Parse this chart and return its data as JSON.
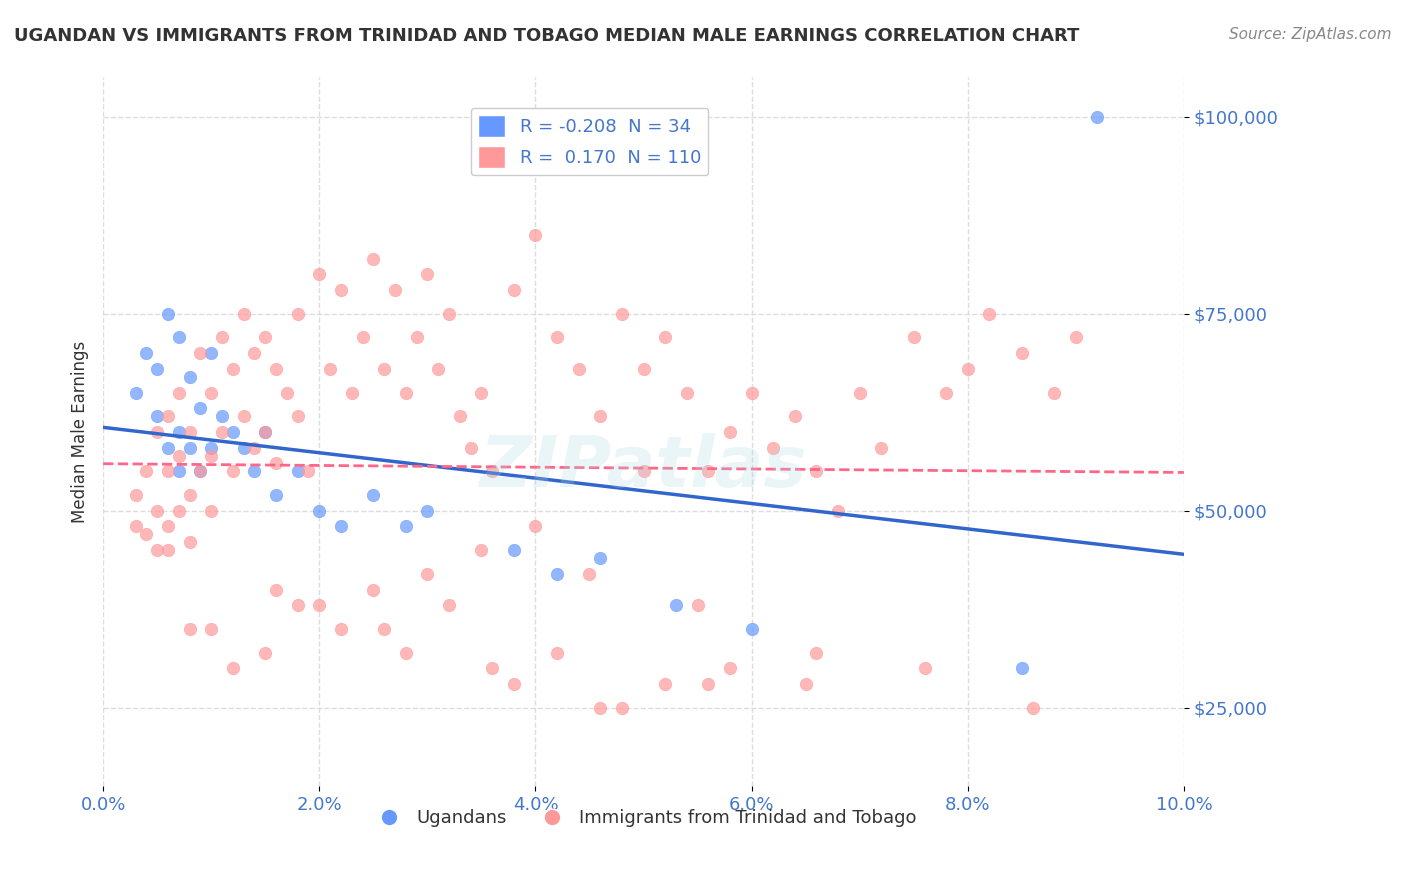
{
  "title": "UGANDAN VS IMMIGRANTS FROM TRINIDAD AND TOBAGO MEDIAN MALE EARNINGS CORRELATION CHART",
  "source": "Source: ZipAtlas.com",
  "xlabel_bottom": "",
  "ylabel": "Median Male Earnings",
  "watermark": "ZIPatlas",
  "legend_blue_r": "-0.208",
  "legend_blue_n": "34",
  "legend_pink_r": "0.170",
  "legend_pink_n": "110",
  "legend_label_blue": "Ugandans",
  "legend_label_pink": "Immigrants from Trinidad and Tobago",
  "xlim": [
    0.0,
    0.1
  ],
  "ylim": [
    15000,
    105000
  ],
  "yticks": [
    25000,
    50000,
    75000,
    100000
  ],
  "xticks": [
    0.0,
    0.02,
    0.04,
    0.06,
    0.08,
    0.1
  ],
  "blue_color": "#6699ff",
  "pink_color": "#ff9999",
  "blue_line_color": "#3366cc",
  "pink_line_color": "#ff6688",
  "bg_color": "#ffffff",
  "grid_color": "#dddddd",
  "title_color": "#333333",
  "axis_label_color": "#4477cc",
  "blue_scatter_x": [
    0.003,
    0.004,
    0.005,
    0.005,
    0.006,
    0.006,
    0.007,
    0.007,
    0.007,
    0.008,
    0.008,
    0.009,
    0.009,
    0.01,
    0.01,
    0.011,
    0.012,
    0.013,
    0.014,
    0.015,
    0.016,
    0.018,
    0.02,
    0.022,
    0.025,
    0.028,
    0.03,
    0.038,
    0.042,
    0.046,
    0.053,
    0.06,
    0.085,
    0.092
  ],
  "blue_scatter_y": [
    65000,
    70000,
    68000,
    62000,
    75000,
    58000,
    72000,
    60000,
    55000,
    67000,
    58000,
    63000,
    55000,
    70000,
    58000,
    62000,
    60000,
    58000,
    55000,
    60000,
    52000,
    55000,
    50000,
    48000,
    52000,
    48000,
    50000,
    45000,
    42000,
    44000,
    38000,
    35000,
    30000,
    100000
  ],
  "pink_scatter_x": [
    0.003,
    0.003,
    0.004,
    0.004,
    0.005,
    0.005,
    0.005,
    0.006,
    0.006,
    0.006,
    0.007,
    0.007,
    0.007,
    0.008,
    0.008,
    0.008,
    0.009,
    0.009,
    0.01,
    0.01,
    0.01,
    0.011,
    0.011,
    0.012,
    0.012,
    0.013,
    0.013,
    0.014,
    0.014,
    0.015,
    0.015,
    0.016,
    0.016,
    0.017,
    0.018,
    0.018,
    0.019,
    0.02,
    0.021,
    0.022,
    0.023,
    0.024,
    0.025,
    0.026,
    0.027,
    0.028,
    0.029,
    0.03,
    0.031,
    0.032,
    0.033,
    0.034,
    0.035,
    0.036,
    0.038,
    0.04,
    0.042,
    0.044,
    0.046,
    0.048,
    0.05,
    0.052,
    0.054,
    0.056,
    0.058,
    0.06,
    0.062,
    0.064,
    0.066,
    0.068,
    0.07,
    0.072,
    0.075,
    0.078,
    0.08,
    0.082,
    0.085,
    0.088,
    0.09,
    0.05,
    0.04,
    0.03,
    0.02,
    0.01,
    0.025,
    0.035,
    0.045,
    0.055,
    0.015,
    0.065,
    0.012,
    0.022,
    0.032,
    0.042,
    0.052,
    0.006,
    0.016,
    0.026,
    0.036,
    0.046,
    0.056,
    0.066,
    0.076,
    0.086,
    0.008,
    0.018,
    0.028,
    0.038,
    0.048,
    0.058
  ],
  "pink_scatter_y": [
    52000,
    48000,
    55000,
    47000,
    60000,
    50000,
    45000,
    62000,
    55000,
    48000,
    65000,
    57000,
    50000,
    60000,
    52000,
    46000,
    70000,
    55000,
    65000,
    57000,
    50000,
    72000,
    60000,
    68000,
    55000,
    75000,
    62000,
    70000,
    58000,
    72000,
    60000,
    68000,
    56000,
    65000,
    75000,
    62000,
    55000,
    80000,
    68000,
    78000,
    65000,
    72000,
    82000,
    68000,
    78000,
    65000,
    72000,
    80000,
    68000,
    75000,
    62000,
    58000,
    65000,
    55000,
    78000,
    85000,
    72000,
    68000,
    62000,
    75000,
    68000,
    72000,
    65000,
    55000,
    60000,
    65000,
    58000,
    62000,
    55000,
    50000,
    65000,
    58000,
    72000,
    65000,
    68000,
    75000,
    70000,
    65000,
    72000,
    55000,
    48000,
    42000,
    38000,
    35000,
    40000,
    45000,
    42000,
    38000,
    32000,
    28000,
    30000,
    35000,
    38000,
    32000,
    28000,
    45000,
    40000,
    35000,
    30000,
    25000,
    28000,
    32000,
    30000,
    25000,
    35000,
    38000,
    32000,
    28000,
    25000,
    30000
  ]
}
